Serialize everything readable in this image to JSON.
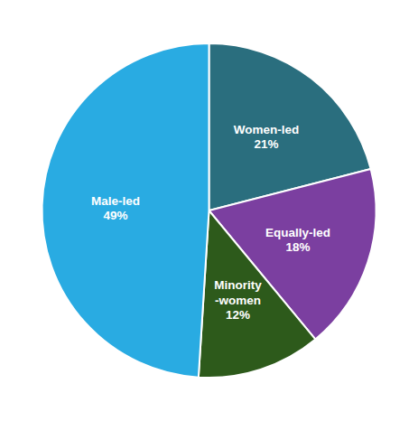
{
  "chart_data": {
    "type": "pie",
    "categories": [
      "Women-led",
      "Equally-led",
      "Minority\n-women",
      "Male-led"
    ],
    "values": [
      21,
      18,
      12,
      49
    ],
    "value_labels": [
      "21%",
      "18%",
      "12%",
      "49%"
    ],
    "data_labels": true,
    "colors": [
      "#2a6e7e",
      "#7b3fa0",
      "#2d5a1b",
      "#29abe2"
    ]
  }
}
